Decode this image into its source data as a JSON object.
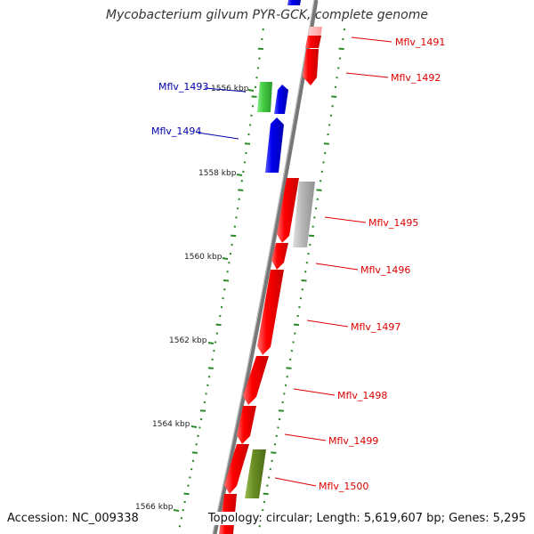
{
  "title": "Mycobacterium gilvum PYR-GCK, complete genome",
  "footer": {
    "accession": "Accession: NC_009338",
    "topology": "Topology: circular; Length: 5,619,607 bp; Genes: 5,295"
  },
  "colors": {
    "backbone": "#777777",
    "tick": "#2a8a2a",
    "forward_gene": "#ff0000",
    "reverse_gene_label": "#0000aa",
    "forward_gene_label": "#dd0000",
    "pseudo_gene": "#b0b0b0",
    "rna_gene": "#44cc44",
    "other_gene": "#6b8e23",
    "blue_gene": "#0000ee",
    "pink_gene": "#ffb0b0"
  },
  "kbp_ticks": [
    {
      "label": "1556 kbp"
    },
    {
      "label": "1558 kbp"
    },
    {
      "label": "1560 kbp"
    },
    {
      "label": "1562 kbp"
    },
    {
      "label": "1564 kbp"
    },
    {
      "label": "1566 kbp"
    }
  ],
  "genes_reverse": [
    {
      "name": "Mflv_1493"
    },
    {
      "name": "Mflv_1494"
    }
  ],
  "genes_forward": [
    {
      "name": "Mflv_1491"
    },
    {
      "name": "Mflv_1492"
    },
    {
      "name": "Mflv_1495"
    },
    {
      "name": "Mflv_1496"
    },
    {
      "name": "Mflv_1497"
    },
    {
      "name": "Mflv_1498"
    },
    {
      "name": "Mflv_1499"
    },
    {
      "name": "Mflv_1500"
    }
  ]
}
